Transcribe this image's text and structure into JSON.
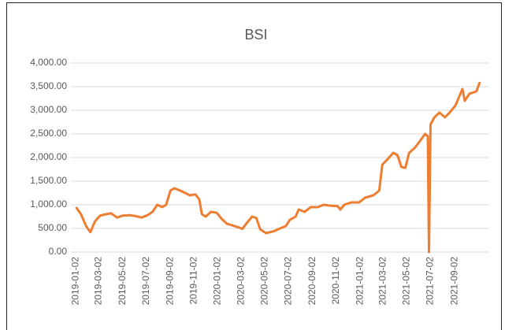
{
  "chart_data": {
    "type": "line",
    "title": "BSI",
    "x": [
      "2019-01-02",
      "2019-01-15",
      "2019-01-28",
      "2019-02-08",
      "2019-02-20",
      "2019-03-05",
      "2019-03-20",
      "2019-04-02",
      "2019-04-18",
      "2019-05-02",
      "2019-05-20",
      "2019-06-05",
      "2019-06-20",
      "2019-07-05",
      "2019-07-18",
      "2019-07-30",
      "2019-08-12",
      "2019-08-22",
      "2019-09-02",
      "2019-09-12",
      "2019-09-27",
      "2019-10-10",
      "2019-10-22",
      "2019-11-05",
      "2019-11-15",
      "2019-11-22",
      "2019-12-02",
      "2019-12-15",
      "2019-12-30",
      "2020-01-12",
      "2020-01-25",
      "2020-02-10",
      "2020-02-25",
      "2020-03-05",
      "2020-03-15",
      "2020-03-30",
      "2020-04-10",
      "2020-04-20",
      "2020-05-05",
      "2020-05-25",
      "2020-06-10",
      "2020-06-25",
      "2020-07-05",
      "2020-07-20",
      "2020-07-28",
      "2020-08-12",
      "2020-08-28",
      "2020-09-15",
      "2020-09-30",
      "2020-10-20",
      "2020-11-05",
      "2020-11-12",
      "2020-11-22",
      "2020-12-10",
      "2020-12-30",
      "2021-01-15",
      "2021-02-05",
      "2021-02-20",
      "2021-02-28",
      "2021-03-12",
      "2021-03-28",
      "2021-04-08",
      "2021-04-18",
      "2021-04-28",
      "2021-05-08",
      "2021-05-22",
      "2021-06-05",
      "2021-06-18",
      "2021-06-25",
      "2021-06-28",
      "2021-07-02",
      "2021-07-12",
      "2021-07-25",
      "2021-08-08",
      "2021-08-20",
      "2021-09-04",
      "2021-09-22",
      "2021-09-28",
      "2021-10-10",
      "2021-10-28",
      "2021-11-06"
    ],
    "series": [
      {
        "name": "BSI",
        "color": "#ed7d31",
        "values": [
          950,
          800,
          550,
          420,
          650,
          770,
          800,
          820,
          730,
          770,
          780,
          760,
          730,
          780,
          850,
          1000,
          950,
          1000,
          1300,
          1350,
          1300,
          1250,
          1200,
          1220,
          1120,
          800,
          750,
          850,
          830,
          700,
          600,
          560,
          520,
          490,
          600,
          750,
          720,
          480,
          400,
          440,
          500,
          550,
          680,
          750,
          900,
          850,
          950,
          950,
          1000,
          980,
          970,
          900,
          1000,
          1050,
          1050,
          1150,
          1200,
          1300,
          1850,
          1950,
          2100,
          2050,
          1800,
          1780,
          2100,
          2200,
          2350,
          2500,
          2450,
          0,
          2700,
          2850,
          2950,
          2850,
          2950,
          3100,
          3450,
          3200,
          3350,
          3400,
          3600
        ]
      }
    ],
    "xlim": [
      "2018-12-20",
      "2021-11-30"
    ],
    "xticks": [
      "2019-01-02",
      "2019-03-02",
      "2019-05-02",
      "2019-07-02",
      "2019-09-02",
      "2019-11-02",
      "2020-01-02",
      "2020-03-02",
      "2020-05-02",
      "2020-07-02",
      "2020-09-02",
      "2020-11-02",
      "2021-01-02",
      "2021-03-02",
      "2021-05-02",
      "2021-07-02",
      "2021-09-02"
    ],
    "ylim": [
      0,
      4000
    ],
    "yticks": [
      {
        "value": 0,
        "label": "0.00"
      },
      {
        "value": 500,
        "label": "500.00"
      },
      {
        "value": 1000,
        "label": "1,000.00"
      },
      {
        "value": 1500,
        "label": "1,500.00"
      },
      {
        "value": 2000,
        "label": "2,000.00"
      },
      {
        "value": 2500,
        "label": "2,500.00"
      },
      {
        "value": 3000,
        "label": "3,000.00"
      },
      {
        "value": 3500,
        "label": "3,500.00"
      },
      {
        "value": 4000,
        "label": "4,000.00"
      }
    ],
    "grid": true
  }
}
